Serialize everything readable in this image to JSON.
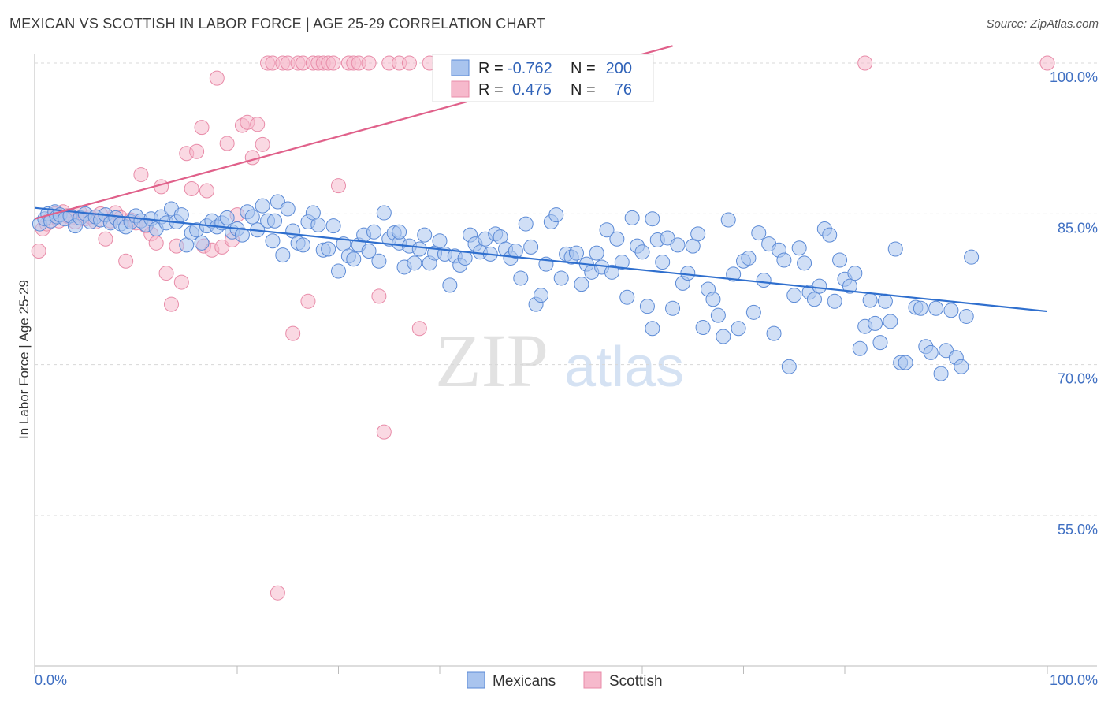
{
  "header": {
    "title": "MEXICAN VS SCOTTISH IN LABOR FORCE | AGE 25-29 CORRELATION CHART",
    "source": "Source: ZipAtlas.com"
  },
  "watermark": {
    "zip": "ZIP",
    "atlas": "atlas"
  },
  "colors": {
    "mexicans_fill": "#a9c4ee",
    "mexicans_stroke": "#5b8ad6",
    "mexicans_line": "#2f6fce",
    "scottish_fill": "#f6b9cc",
    "scottish_stroke": "#e88ba8",
    "scottish_line": "#e0608a",
    "tick_label": "#3f6fc2",
    "grid": "#d8d8d8"
  },
  "legend_top": {
    "rows": [
      {
        "r_label": "R =",
        "r_value": "-0.762",
        "n_label": "N =",
        "n_value": "200"
      },
      {
        "r_label": "R =",
        "r_value": "0.475",
        "n_label": "N =",
        "n_value": "76"
      }
    ]
  },
  "legend_bottom": {
    "items": [
      "Mexicans",
      "Scottish"
    ]
  },
  "chart_data": {
    "type": "scatter",
    "title": "MEXICAN VS SCOTTISH IN LABOR FORCE | AGE 25-29 CORRELATION CHART",
    "xlabel": "",
    "ylabel": "In Labor Force | Age 25-29",
    "xlim": [
      0,
      100
    ],
    "ylim": [
      40,
      103
    ],
    "x_tick_labels": [
      "0.0%",
      "100.0%"
    ],
    "y_ticks": [
      55,
      70,
      85,
      100
    ],
    "y_tick_labels": [
      "55.0%",
      "70.0%",
      "85.0%",
      "100.0%"
    ],
    "grid": true,
    "legend_position": "top-center",
    "series": [
      {
        "name": "Mexicans",
        "r": -0.762,
        "n": 200,
        "trend": {
          "x": [
            0,
            100
          ],
          "y": [
            85.6,
            75.3
          ]
        },
        "points": [
          [
            0.5,
            84
          ],
          [
            1,
            84.5
          ],
          [
            1.3,
            85
          ],
          [
            1.6,
            84.3
          ],
          [
            2,
            85.2
          ],
          [
            2.2,
            84.7
          ],
          [
            2.5,
            84.9
          ],
          [
            3,
            84.5
          ],
          [
            3.5,
            84.8
          ],
          [
            4,
            83.8
          ],
          [
            4.5,
            84.6
          ],
          [
            5,
            85
          ],
          [
            5.5,
            84.2
          ],
          [
            6,
            84.7
          ],
          [
            6.5,
            84.4
          ],
          [
            7,
            84.9
          ],
          [
            7.5,
            84.1
          ],
          [
            8,
            84.6
          ],
          [
            8.5,
            84
          ],
          [
            9,
            83.7
          ],
          [
            9.5,
            84.2
          ],
          [
            10,
            84.8
          ],
          [
            10.5,
            84.3
          ],
          [
            11,
            83.9
          ],
          [
            11.5,
            84.5
          ],
          [
            12,
            83.5
          ],
          [
            12.5,
            84.7
          ],
          [
            13,
            84.1
          ],
          [
            13.5,
            85.5
          ],
          [
            14,
            84.2
          ],
          [
            14.5,
            84.9
          ],
          [
            15,
            81.9
          ],
          [
            15.5,
            83.1
          ],
          [
            16,
            83.4
          ],
          [
            16.5,
            82.1
          ],
          [
            17,
            83.8
          ],
          [
            17.5,
            84.3
          ],
          [
            18,
            83.7
          ],
          [
            18.5,
            84.1
          ],
          [
            19,
            84.6
          ],
          [
            19.5,
            83.2
          ],
          [
            20,
            83.5
          ],
          [
            20.5,
            82.9
          ],
          [
            21,
            85.2
          ],
          [
            21.5,
            84.7
          ],
          [
            22,
            83.4
          ],
          [
            22.5,
            85.8
          ],
          [
            23,
            84.3
          ],
          [
            23.5,
            82.3
          ],
          [
            24,
            86.2
          ],
          [
            24.5,
            80.9
          ],
          [
            25,
            85.5
          ],
          [
            25.5,
            83.3
          ],
          [
            26,
            82.1
          ],
          [
            26.5,
            81.9
          ],
          [
            27,
            84.2
          ],
          [
            27.5,
            85.1
          ],
          [
            28,
            83.9
          ],
          [
            28.5,
            81.4
          ],
          [
            29,
            81.5
          ],
          [
            29.5,
            83.8
          ],
          [
            30,
            79.3
          ],
          [
            30.5,
            82
          ],
          [
            31,
            80.8
          ],
          [
            31.5,
            80.5
          ],
          [
            32,
            81.9
          ],
          [
            32.5,
            82.9
          ],
          [
            33,
            81.3
          ],
          [
            33.5,
            83.2
          ],
          [
            34,
            80.3
          ],
          [
            34.5,
            85.1
          ],
          [
            35,
            82.5
          ],
          [
            35.5,
            83.1
          ],
          [
            36,
            82.1
          ],
          [
            36.5,
            79.7
          ],
          [
            37,
            81.8
          ],
          [
            37.5,
            80.1
          ],
          [
            38,
            81.5
          ],
          [
            38.5,
            82.9
          ],
          [
            39,
            80.1
          ],
          [
            39.5,
            81.1
          ],
          [
            40,
            82.3
          ],
          [
            40.5,
            81
          ],
          [
            41,
            77.9
          ],
          [
            41.5,
            80.8
          ],
          [
            42,
            79.9
          ],
          [
            42.5,
            80.6
          ],
          [
            43,
            82.9
          ],
          [
            43.5,
            82
          ],
          [
            44,
            81.2
          ],
          [
            44.5,
            82.5
          ],
          [
            45,
            81
          ],
          [
            45.5,
            83
          ],
          [
            46,
            82.7
          ],
          [
            46.5,
            81.5
          ],
          [
            47,
            80.6
          ],
          [
            47.5,
            81.3
          ],
          [
            48,
            78.6
          ],
          [
            48.5,
            84
          ],
          [
            49,
            81.7
          ],
          [
            49.5,
            76
          ],
          [
            50,
            76.9
          ],
          [
            50.5,
            80
          ],
          [
            51,
            84.2
          ],
          [
            51.5,
            84.9
          ],
          [
            52,
            78.6
          ],
          [
            52.5,
            81
          ],
          [
            53,
            80.7
          ],
          [
            53.5,
            81.1
          ],
          [
            54,
            78
          ],
          [
            54.5,
            80
          ],
          [
            55,
            79.2
          ],
          [
            55.5,
            81.1
          ],
          [
            56,
            79.7
          ],
          [
            56.5,
            83.4
          ],
          [
            57,
            79.2
          ],
          [
            57.5,
            82.5
          ],
          [
            58,
            80.2
          ],
          [
            58.5,
            76.7
          ],
          [
            59,
            84.6
          ],
          [
            59.5,
            81.8
          ],
          [
            60,
            81.2
          ],
          [
            60.5,
            75.8
          ],
          [
            61,
            73.6
          ],
          [
            61.5,
            82.4
          ],
          [
            62,
            80.2
          ],
          [
            62.5,
            82.6
          ],
          [
            63,
            75.6
          ],
          [
            63.5,
            81.9
          ],
          [
            64,
            78.1
          ],
          [
            64.5,
            79.1
          ],
          [
            65,
            81.8
          ],
          [
            65.5,
            83
          ],
          [
            66,
            73.7
          ],
          [
            66.5,
            77.5
          ],
          [
            67,
            76.5
          ],
          [
            67.5,
            74.9
          ],
          [
            68,
            72.8
          ],
          [
            68.5,
            84.4
          ],
          [
            69,
            79
          ],
          [
            69.5,
            73.6
          ],
          [
            70,
            80.3
          ],
          [
            70.5,
            80.6
          ],
          [
            71,
            75.2
          ],
          [
            71.5,
            83.1
          ],
          [
            72,
            78.4
          ],
          [
            72.5,
            82
          ],
          [
            73,
            73.1
          ],
          [
            73.5,
            81.4
          ],
          [
            74,
            80.4
          ],
          [
            74.5,
            69.8
          ],
          [
            75,
            76.9
          ],
          [
            75.5,
            81.6
          ],
          [
            76,
            80.1
          ],
          [
            76.5,
            77.2
          ],
          [
            77,
            76.5
          ],
          [
            77.5,
            77.8
          ],
          [
            78,
            83.5
          ],
          [
            78.5,
            82.9
          ],
          [
            79,
            76.3
          ],
          [
            79.5,
            80.4
          ],
          [
            80,
            78.5
          ],
          [
            80.5,
            77.8
          ],
          [
            81,
            79.1
          ],
          [
            81.5,
            71.6
          ],
          [
            82,
            73.8
          ],
          [
            82.5,
            76.4
          ],
          [
            83,
            74.1
          ],
          [
            83.5,
            72.2
          ],
          [
            84,
            76.3
          ],
          [
            84.5,
            74.3
          ],
          [
            85,
            81.5
          ],
          [
            85.5,
            70.2
          ],
          [
            86,
            70.2
          ],
          [
            87,
            75.7
          ],
          [
            87.5,
            75.6
          ],
          [
            88,
            71.8
          ],
          [
            88.5,
            71.2
          ],
          [
            89,
            75.6
          ],
          [
            89.5,
            69.1
          ],
          [
            90,
            71.4
          ],
          [
            90.5,
            75.4
          ],
          [
            91,
            70.7
          ],
          [
            91.5,
            69.8
          ],
          [
            92,
            74.8
          ],
          [
            92.5,
            80.7
          ],
          [
            23.7,
            84.3
          ],
          [
            61,
            84.5
          ],
          [
            36,
            83.2
          ]
        ]
      },
      {
        "name": "Scottish",
        "r": 0.475,
        "n": 76,
        "trend": {
          "x": [
            0,
            63
          ],
          "y": [
            84.5,
            101.7
          ]
        },
        "points": [
          [
            0.4,
            81.3
          ],
          [
            0.8,
            83.5
          ],
          [
            1.2,
            84
          ],
          [
            1.6,
            84.6
          ],
          [
            2,
            85
          ],
          [
            2.4,
            84.3
          ],
          [
            2.8,
            85.2
          ],
          [
            3.2,
            84.8
          ],
          [
            3.6,
            84.6
          ],
          [
            4,
            84.2
          ],
          [
            4.5,
            85.1
          ],
          [
            5,
            84.5
          ],
          [
            5.5,
            84.7
          ],
          [
            6,
            84.2
          ],
          [
            6.5,
            85
          ],
          [
            7,
            82.5
          ],
          [
            7.5,
            84.3
          ],
          [
            8,
            85.1
          ],
          [
            8.5,
            84.6
          ],
          [
            9,
            80.3
          ],
          [
            9.5,
            84.4
          ],
          [
            10,
            84.1
          ],
          [
            10.5,
            88.9
          ],
          [
            11,
            83.8
          ],
          [
            11.5,
            83
          ],
          [
            12,
            82.1
          ],
          [
            12.5,
            87.7
          ],
          [
            13,
            79.1
          ],
          [
            13.5,
            76
          ],
          [
            14,
            81.8
          ],
          [
            14.5,
            78.2
          ],
          [
            15,
            91
          ],
          [
            15.5,
            87.5
          ],
          [
            16,
            91.2
          ],
          [
            16.5,
            93.6
          ],
          [
            16.7,
            81.8
          ],
          [
            17,
            87.3
          ],
          [
            17.5,
            81.4
          ],
          [
            18,
            98.5
          ],
          [
            18.5,
            81.7
          ],
          [
            19,
            92
          ],
          [
            19.5,
            82.4
          ],
          [
            20,
            84.9
          ],
          [
            20.5,
            93.8
          ],
          [
            21,
            94.1
          ],
          [
            21.5,
            90.6
          ],
          [
            22,
            93.9
          ],
          [
            22.5,
            91.9
          ],
          [
            23,
            100
          ],
          [
            23.5,
            100
          ],
          [
            24,
            47.3
          ],
          [
            24.5,
            100
          ],
          [
            25,
            100
          ],
          [
            25.5,
            73.1
          ],
          [
            26,
            100
          ],
          [
            26.5,
            100
          ],
          [
            27,
            76.3
          ],
          [
            27.5,
            100
          ],
          [
            28,
            100
          ],
          [
            28.5,
            100
          ],
          [
            29,
            100
          ],
          [
            29.5,
            100
          ],
          [
            30,
            87.8
          ],
          [
            31,
            100
          ],
          [
            31.5,
            100
          ],
          [
            32,
            100
          ],
          [
            33,
            100
          ],
          [
            34,
            76.8
          ],
          [
            34.5,
            63.3
          ],
          [
            35,
            100
          ],
          [
            36,
            100
          ],
          [
            37,
            100
          ],
          [
            38,
            73.6
          ],
          [
            39,
            100
          ],
          [
            40,
            100
          ],
          [
            82,
            100
          ],
          [
            100,
            100
          ]
        ]
      }
    ]
  }
}
